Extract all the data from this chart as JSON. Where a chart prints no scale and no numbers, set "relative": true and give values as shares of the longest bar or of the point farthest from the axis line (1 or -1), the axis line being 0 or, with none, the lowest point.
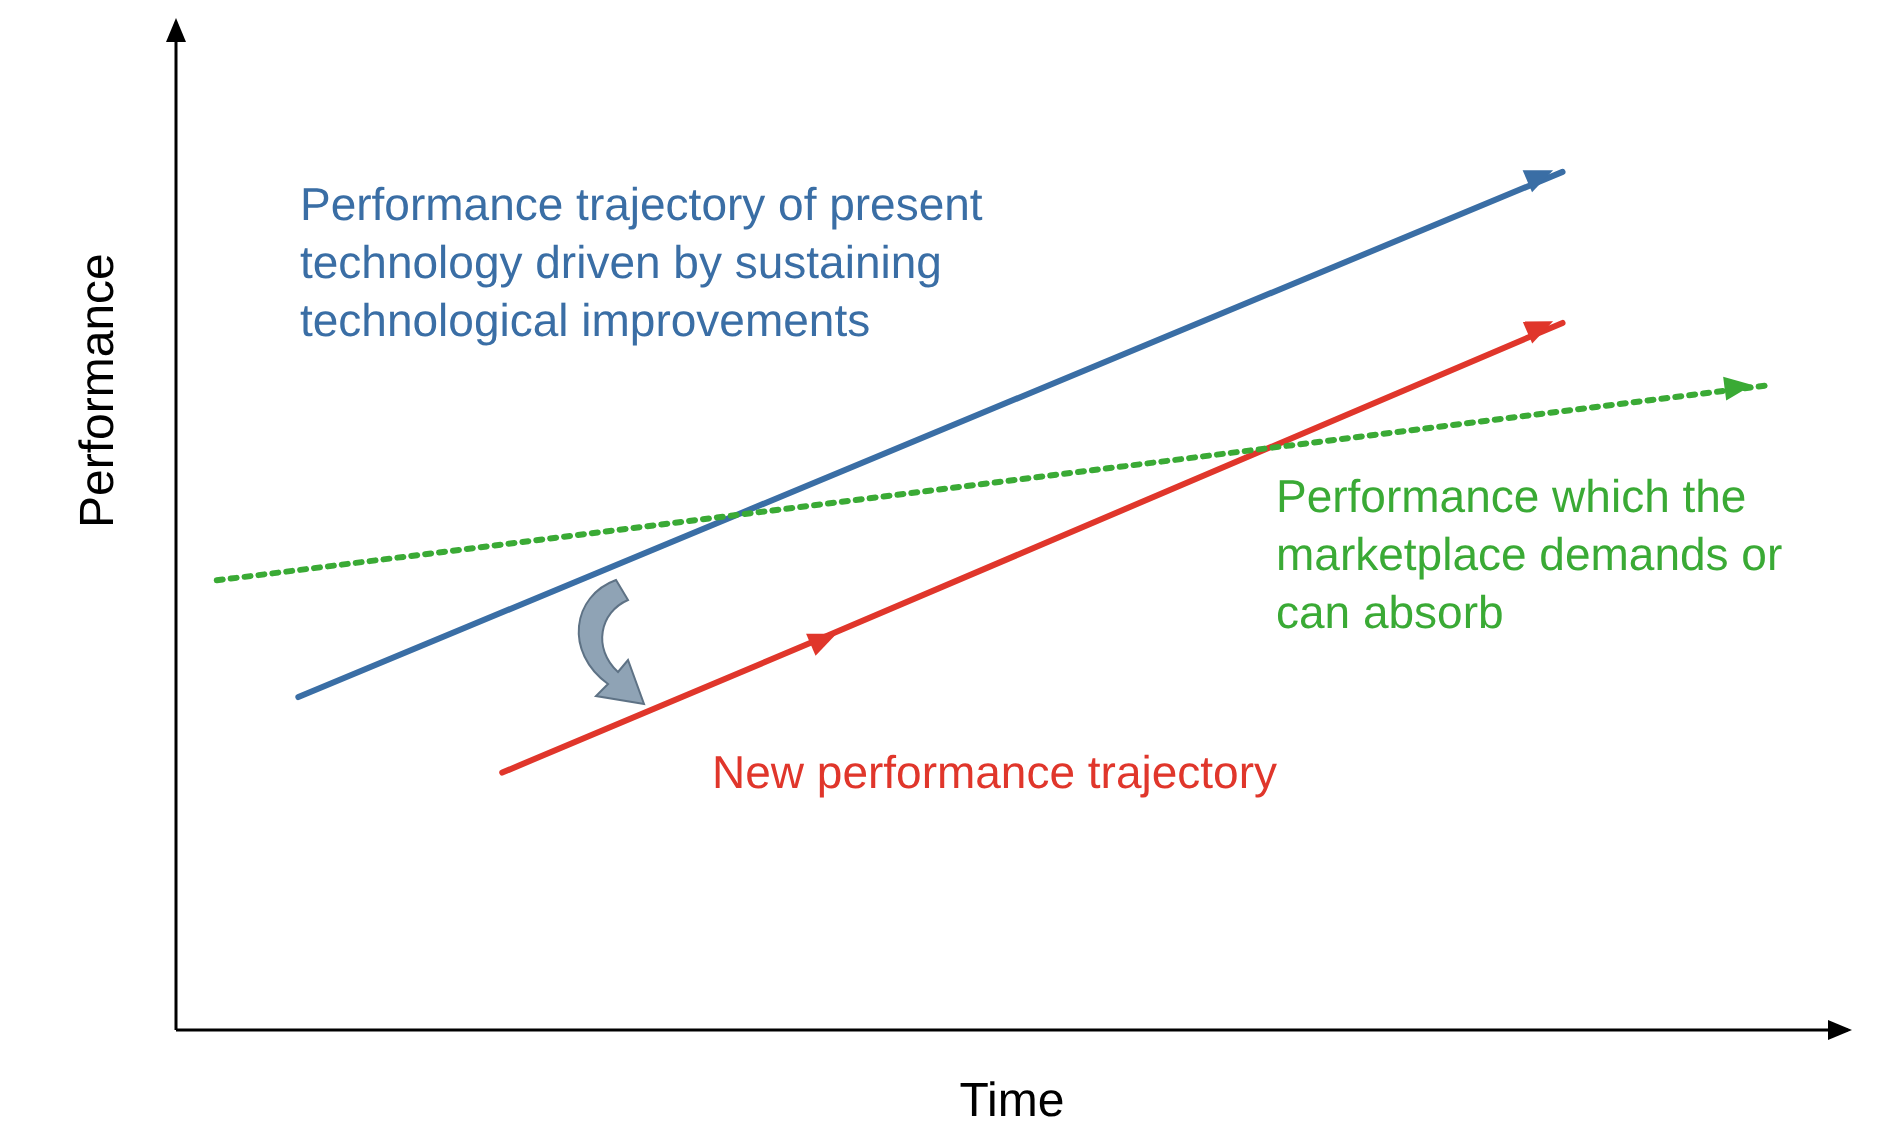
{
  "chart_data": {
    "type": "line",
    "relative": true,
    "xlabel": "Time",
    "ylabel": "Performance",
    "marker": "none",
    "categories": [
      null,
      null,
      null,
      null,
      null,
      null,
      null,
      null,
      null,
      null,
      null,
      null,
      null,
      null,
      null,
      null,
      null,
      null,
      null,
      null,
      null,
      null,
      null,
      null,
      null,
      null,
      null,
      null,
      null,
      null,
      null,
      null,
      null,
      null,
      null,
      null,
      null,
      null,
      null,
      null,
      null,
      null
    ],
    "annotations": [
      "Performance trajectory of present technology driven by sustaining technological improvements",
      "Performance which the marketplace demands or can absorb",
      "New performance trajectory"
    ],
    "series": [
      {
        "color": "#3a6ea5",
        "line_style": "solid",
        "values": [
          null,
          null,
          null,
          0.388,
          null,
          null,
          null,
          null,
          null,
          null,
          null,
          null,
          null,
          null,
          null,
          null,
          null,
          null,
          null,
          null,
          null,
          null,
          null,
          null,
          null,
          null,
          null,
          null,
          null,
          null,
          null,
          null,
          null,
          null,
          1,
          null,
          null,
          null,
          null,
          null,
          null,
          null
        ]
      },
      {
        "color": "#e0362b",
        "line_style": "solid",
        "values": [
          null,
          null,
          null,
          null,
          null,
          null,
          null,
          null,
          0.3,
          null,
          null,
          null,
          null,
          null,
          null,
          null,
          0.46,
          null,
          null,
          null,
          null,
          null,
          null,
          null,
          null,
          null,
          null,
          null,
          null,
          null,
          null,
          null,
          null,
          null,
          0.824,
          null,
          null,
          null,
          null,
          null,
          null,
          null
        ]
      },
      {
        "color": "#3aaa35",
        "line_style": "dotted",
        "values": [
          null,
          0.524,
          null,
          null,
          null,
          null,
          null,
          null,
          null,
          null,
          null,
          null,
          null,
          null,
          null,
          null,
          null,
          null,
          null,
          null,
          null,
          null,
          null,
          null,
          null,
          null,
          null,
          null,
          null,
          null,
          null,
          null,
          null,
          null,
          null,
          null,
          null,
          null,
          null,
          0.751,
          null,
          null
        ]
      }
    ]
  }
}
